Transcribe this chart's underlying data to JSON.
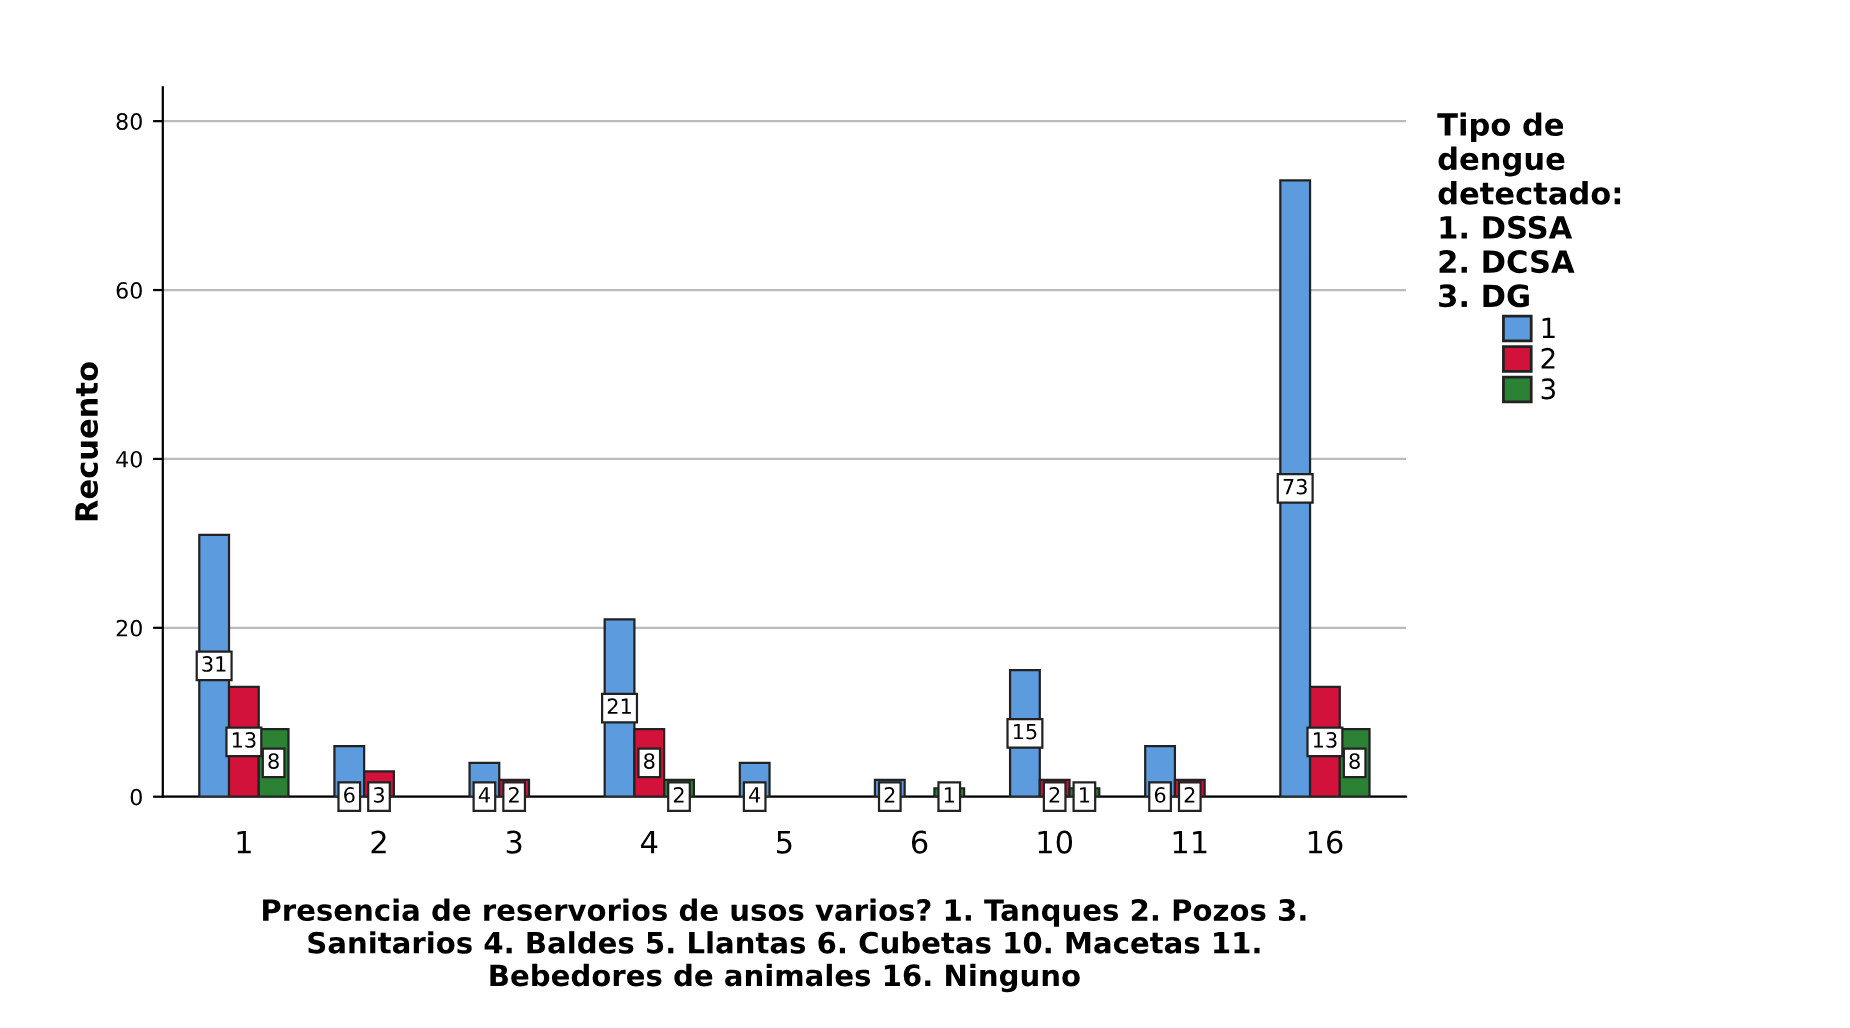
{
  "chart_data": {
    "type": "bar",
    "xlabel": "Presencia de reservorios de usos varios? 1. Tanques 2. Pozos 3.\nSanitarios 4. Baldes 5. Llantas 6. Cubetas 10. Macetas 11.\nBebedores de animales 16. Ninguno",
    "ylabel": "Recuento",
    "legend_title": "Tipo de\ndengue\ndetectado:\n1. DSSA\n2. DCSA\n3. DG",
    "categories": [
      "1",
      "2",
      "3",
      "4",
      "5",
      "6",
      "10",
      "11",
      "16"
    ],
    "series": [
      {
        "name": "1",
        "color": "#5b9bde",
        "values": [
          31,
          6,
          4,
          21,
          4,
          2,
          15,
          6,
          73
        ]
      },
      {
        "name": "2",
        "color": "#d2123a",
        "values": [
          13,
          3,
          2,
          8,
          null,
          null,
          2,
          2,
          13
        ]
      },
      {
        "name": "3",
        "color": "#2b8234",
        "values": [
          8,
          null,
          null,
          2,
          null,
          1,
          1,
          null,
          8
        ]
      }
    ],
    "ylim": [
      0,
      84
    ],
    "yticks": [
      0,
      20,
      40,
      60,
      80
    ],
    "grid": "y",
    "legend": "right",
    "data_labels": true
  }
}
